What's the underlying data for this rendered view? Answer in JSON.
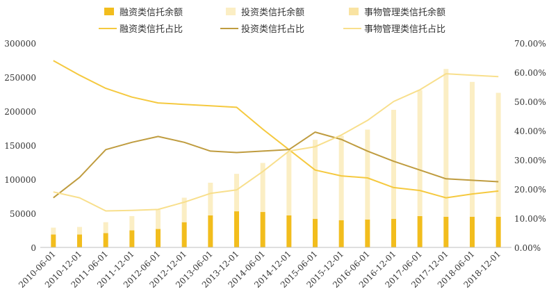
{
  "chart_data": {
    "type": "bar",
    "title": "",
    "xlabel": "",
    "ylabel": "",
    "categories": [
      "2010-06-01",
      "2010-12-01",
      "2011-06-01",
      "2011-12-01",
      "2012-06-01",
      "2012-12-01",
      "2013-06-01",
      "2013-12-01",
      "2014-06-01",
      "2014-12-01",
      "2015-06-01",
      "2015-12-01",
      "2016-06-01",
      "2016-12-01",
      "2017-06-01",
      "2017-12-01",
      "2018-06-01",
      "2018-12-01"
    ],
    "ylim": [
      0,
      300000
    ],
    "y2lim": [
      0,
      0.7
    ],
    "yticks": [
      "0",
      "50000",
      "100000",
      "150000",
      "200000",
      "250000",
      "300000"
    ],
    "y2ticks": [
      "0.00%",
      "10.00%",
      "20.00%",
      "30.00%",
      "40.00%",
      "50.00%",
      "60.00%",
      "70.00%"
    ],
    "grid": false,
    "legend_position": "top",
    "bar_series": [
      {
        "name": "融资类信托余额",
        "color": "#f2bd1d",
        "values": [
          19000,
          19000,
          21000,
          25000,
          27000,
          37000,
          47000,
          53000,
          52000,
          47000,
          42000,
          40000,
          41000,
          42000,
          46000,
          45000,
          45000,
          45000
        ]
      },
      {
        "name": "投资类信托余额",
        "color": "#fbeec4",
        "values": [
          10000,
          11000,
          16000,
          21000,
          28000,
          36000,
          48000,
          55000,
          72000,
          93000,
          116000,
          124000,
          132000,
          160000,
          185000,
          217000,
          198000,
          182000
        ]
      },
      {
        "name": "事物管理类信托余额",
        "color": "#f9e3a2",
        "values": [
          0,
          0,
          0,
          0,
          0,
          0,
          0,
          0,
          0,
          0,
          0,
          0,
          0,
          0,
          0,
          0,
          0,
          0
        ]
      }
    ],
    "line_series": [
      {
        "name": "融资类信托占比",
        "color": "#f5c93f",
        "values": [
          0.64,
          0.59,
          0.545,
          0.515,
          0.495,
          0.49,
          0.485,
          0.48,
          0.405,
          0.335,
          0.265,
          0.245,
          0.238,
          0.205,
          0.195,
          0.17,
          0.183,
          0.193
        ]
      },
      {
        "name": "投资类信托占比",
        "color": "#bf9c3f",
        "values": [
          0.17,
          0.24,
          0.335,
          0.36,
          0.38,
          0.36,
          0.33,
          0.325,
          0.33,
          0.335,
          0.395,
          0.37,
          0.33,
          0.295,
          0.265,
          0.235,
          0.23,
          0.225
        ]
      },
      {
        "name": "事物管理类信托占比",
        "color": "#f8df8c",
        "values": [
          0.19,
          0.17,
          0.125,
          0.127,
          0.13,
          0.155,
          0.185,
          0.197,
          0.26,
          0.33,
          0.345,
          0.385,
          0.435,
          0.5,
          0.54,
          0.595,
          0.59,
          0.585
        ]
      }
    ]
  }
}
